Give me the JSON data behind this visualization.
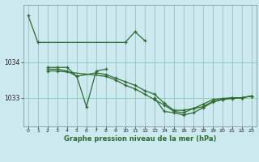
{
  "title": "Graphe pression niveau de la mer (hPa)",
  "bg_color": "#cde9f0",
  "grid_color": "#88ccaa",
  "line_color": "#2d6b2d",
  "ylim": [
    1032.2,
    1035.6
  ],
  "yticks": [
    1033,
    1034
  ],
  "xlim": [
    -0.5,
    23.5
  ],
  "xticks": [
    0,
    1,
    2,
    3,
    4,
    5,
    6,
    7,
    8,
    9,
    10,
    11,
    12,
    13,
    14,
    15,
    16,
    17,
    18,
    19,
    20,
    21,
    22,
    23
  ],
  "series": [
    {
      "x": [
        0,
        1,
        10,
        11,
        12
      ],
      "y": [
        1035.3,
        1034.55,
        1034.55,
        1034.85,
        1034.6
      ]
    },
    {
      "x": [
        2,
        3,
        4,
        5,
        6,
        7,
        8
      ],
      "y": [
        1033.85,
        1033.85,
        1033.85,
        1033.6,
        1032.75,
        1033.75,
        1033.8
      ]
    },
    {
      "x": [
        2,
        3,
        4,
        5,
        7,
        8,
        9,
        10,
        11,
        12,
        13,
        14,
        15,
        16,
        17,
        18,
        19,
        20,
        21,
        22,
        23
      ],
      "y": [
        1033.8,
        1033.8,
        1033.75,
        1033.6,
        1033.7,
        1033.65,
        1033.55,
        1033.45,
        1033.35,
        1033.2,
        1033.1,
        1032.85,
        1032.65,
        1032.65,
        1032.7,
        1032.75,
        1032.9,
        1032.95,
        1033.0,
        1033.0,
        1033.05
      ]
    },
    {
      "x": [
        2,
        3,
        8,
        9,
        10,
        11,
        12,
        13,
        14,
        15,
        16,
        17,
        18,
        19,
        20,
        21,
        22,
        23
      ],
      "y": [
        1033.75,
        1033.75,
        1033.6,
        1033.5,
        1033.35,
        1033.25,
        1033.1,
        1032.95,
        1032.8,
        1032.62,
        1032.58,
        1032.7,
        1032.82,
        1032.95,
        1032.98,
        1033.0,
        1033.0,
        1033.05
      ]
    },
    {
      "x": [
        13,
        14,
        15,
        16,
        17,
        18,
        19,
        20,
        21,
        22,
        23
      ],
      "y": [
        1033.0,
        1032.62,
        1032.58,
        1032.52,
        1032.58,
        1032.72,
        1032.88,
        1032.95,
        1032.98,
        1033.0,
        1033.05
      ]
    }
  ]
}
